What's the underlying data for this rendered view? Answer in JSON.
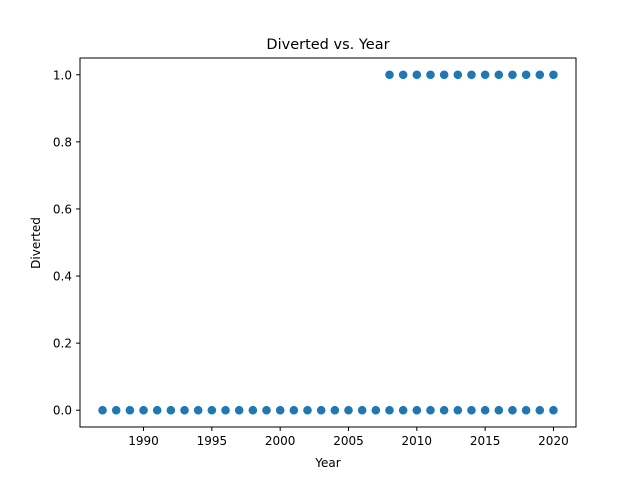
{
  "chart_data": {
    "type": "scatter",
    "title": "Diverted vs. Year",
    "xlabel": "Year",
    "ylabel": "Diverted",
    "xlim": [
      1985.35,
      2021.65
    ],
    "ylim": [
      -0.05,
      1.05
    ],
    "xticks": [
      1990,
      1995,
      2000,
      2005,
      2010,
      2015,
      2020
    ],
    "yticks": [
      0.0,
      0.2,
      0.4,
      0.6,
      0.8,
      1.0
    ],
    "ytick_labels": [
      "0.0",
      "0.2",
      "0.4",
      "0.6",
      "0.8",
      "1.0"
    ],
    "grid": false,
    "marker_color": "#1f77b4",
    "series": [
      {
        "x": [
          1987,
          1988,
          1989,
          1990,
          1991,
          1992,
          1993,
          1994,
          1995,
          1996,
          1997,
          1998,
          1999,
          2000,
          2001,
          2002,
          2003,
          2004,
          2005,
          2006,
          2007,
          2008,
          2009,
          2010,
          2011,
          2012,
          2013,
          2014,
          2015,
          2016,
          2017,
          2018,
          2019,
          2020,
          2008,
          2009,
          2010,
          2011,
          2012,
          2013,
          2014,
          2015,
          2016,
          2017,
          2018,
          2019,
          2020
        ],
        "y": [
          0,
          0,
          0,
          0,
          0,
          0,
          0,
          0,
          0,
          0,
          0,
          0,
          0,
          0,
          0,
          0,
          0,
          0,
          0,
          0,
          0,
          0,
          0,
          0,
          0,
          0,
          0,
          0,
          0,
          0,
          0,
          0,
          0,
          0,
          1,
          1,
          1,
          1,
          1,
          1,
          1,
          1,
          1,
          1,
          1,
          1,
          1
        ]
      }
    ]
  }
}
